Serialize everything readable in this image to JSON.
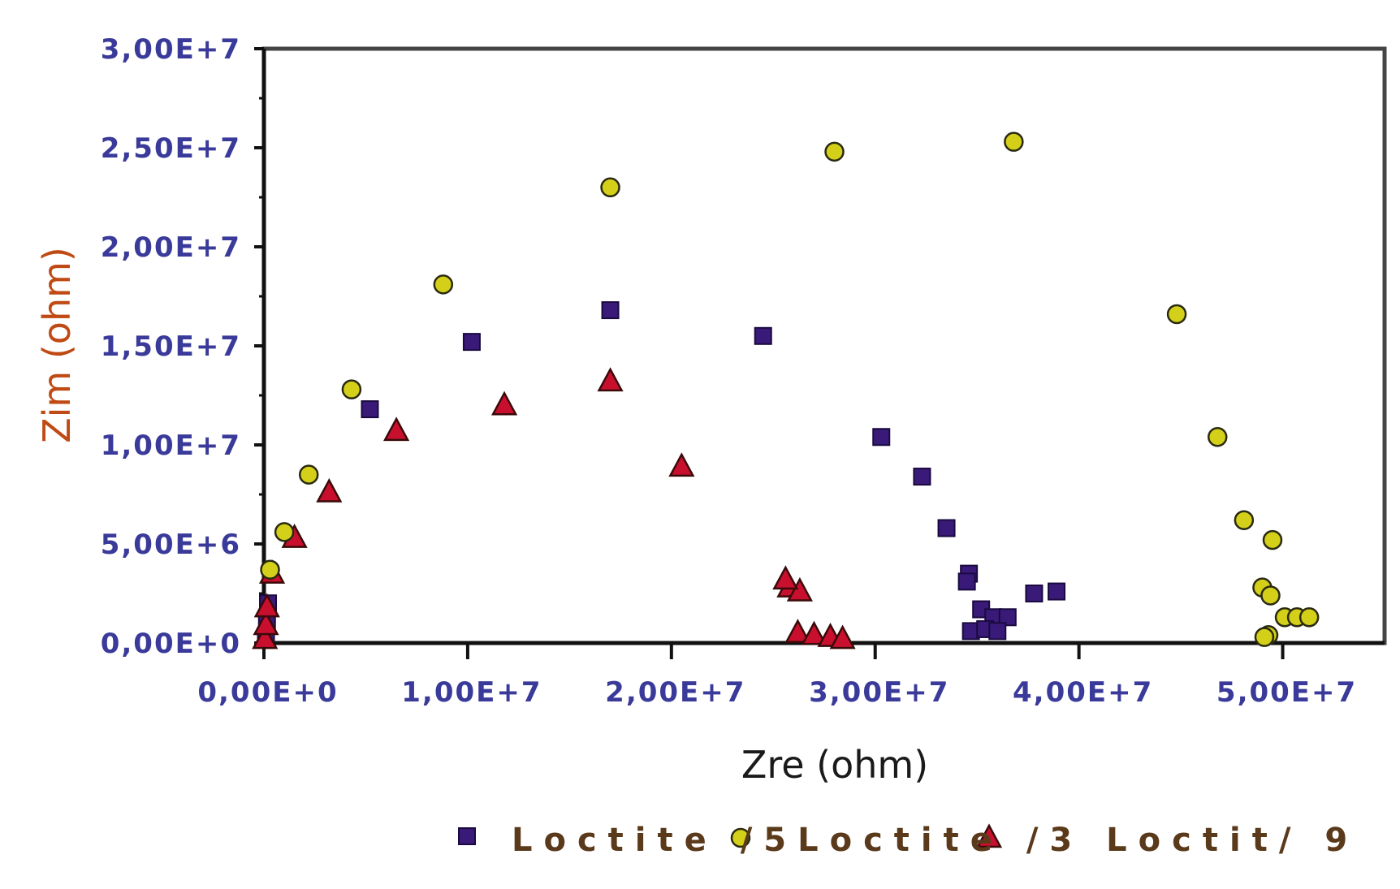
{
  "chart_data": {
    "type": "scatter",
    "xlabel": "Zre (ohm)",
    "ylabel": "Zim (ohm)",
    "xlim": [
      0,
      55000000
    ],
    "ylim": [
      0,
      30000000
    ],
    "x_ticks": [
      "0,00E+0",
      "1,00E+7",
      "2,00E+7",
      "3,00E+7",
      "4,00E+7",
      "5,00E+7"
    ],
    "y_ticks": [
      "0,00E+0",
      "5,00E+6",
      "1,00E+7",
      "1,50E+7",
      "2,00E+7",
      "2,50E+7",
      "3,00E+7"
    ],
    "legend_position": "bottom",
    "legend_text": "Loctite /5Loctite /3 Loctit/ 9",
    "series": [
      {
        "name": "Loctite /5",
        "marker": "square",
        "color": "#3a1a78",
        "points": [
          [
            100000,
            300000
          ],
          [
            150000,
            1000000
          ],
          [
            200000,
            2000000
          ],
          [
            5200000,
            11800000
          ],
          [
            10200000,
            15200000
          ],
          [
            17000000,
            16800000
          ],
          [
            24500000,
            15500000
          ],
          [
            30300000,
            10400000
          ],
          [
            32300000,
            8400000
          ],
          [
            33500000,
            5800000
          ],
          [
            34600000,
            3500000
          ],
          [
            34500000,
            3100000
          ],
          [
            35200000,
            1700000
          ],
          [
            35800000,
            1300000
          ],
          [
            36500000,
            1300000
          ],
          [
            37800000,
            2500000
          ],
          [
            38900000,
            2600000
          ],
          [
            34700000,
            600000
          ],
          [
            35400000,
            700000
          ],
          [
            36000000,
            600000
          ]
        ]
      },
      {
        "name": "Loctite /3",
        "marker": "triangle",
        "color": "#c8102e",
        "points": [
          [
            50000,
            200000
          ],
          [
            100000,
            900000
          ],
          [
            150000,
            1800000
          ],
          [
            400000,
            3500000
          ],
          [
            1500000,
            5300000
          ],
          [
            3200000,
            7600000
          ],
          [
            6500000,
            10700000
          ],
          [
            11800000,
            12000000
          ],
          [
            17000000,
            13200000
          ],
          [
            20500000,
            8900000
          ],
          [
            25800000,
            2800000
          ],
          [
            26300000,
            2600000
          ],
          [
            25600000,
            3200000
          ],
          [
            26200000,
            500000
          ],
          [
            27000000,
            400000
          ],
          [
            27800000,
            300000
          ],
          [
            28400000,
            200000
          ]
        ]
      },
      {
        "name": "9",
        "marker": "circle",
        "color": "#d4d01a",
        "points": [
          [
            300000,
            3700000
          ],
          [
            1000000,
            5600000
          ],
          [
            2200000,
            8500000
          ],
          [
            4300000,
            12800000
          ],
          [
            8800000,
            18100000
          ],
          [
            17000000,
            23000000
          ],
          [
            28000000,
            24800000
          ],
          [
            36800000,
            25300000
          ],
          [
            44800000,
            16600000
          ],
          [
            46800000,
            10400000
          ],
          [
            48100000,
            6200000
          ],
          [
            49500000,
            5200000
          ],
          [
            49000000,
            2800000
          ],
          [
            49400000,
            2400000
          ],
          [
            50100000,
            1300000
          ],
          [
            50700000,
            1300000
          ],
          [
            51300000,
            1300000
          ],
          [
            49300000,
            400000
          ],
          [
            49100000,
            300000
          ]
        ]
      }
    ]
  }
}
